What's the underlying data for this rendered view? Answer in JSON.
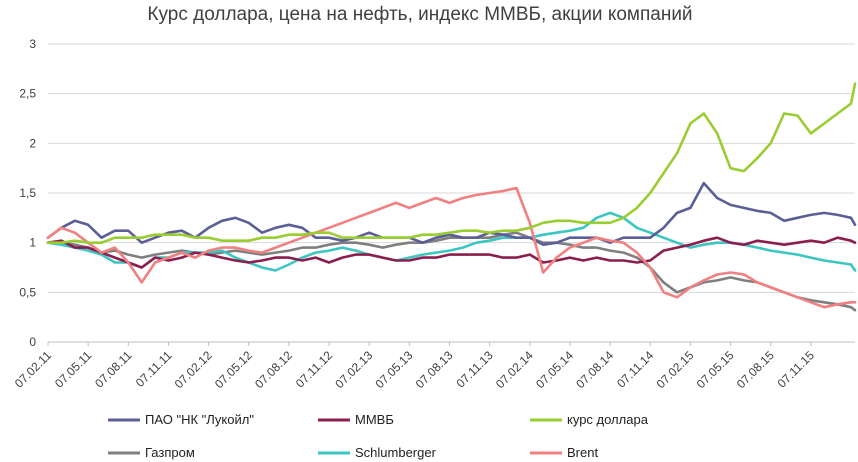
{
  "chart_data": {
    "type": "line",
    "title": "Курс доллара, цена на нефть, индекс ММВБ, акции компаний",
    "xlabel": "",
    "ylabel": "",
    "ylim": [
      0,
      3
    ],
    "y_ticks": [
      "0",
      "0,5",
      "1",
      "1,5",
      "2",
      "2,5",
      "3"
    ],
    "y_tick_values": [
      0,
      0.5,
      1,
      1.5,
      2,
      2.5,
      3
    ],
    "x_ticks": [
      "07.02.11",
      "07.05.11",
      "07.08.11",
      "07.11.11",
      "07.02.12",
      "07.05.12",
      "07.08.12",
      "07.11.12",
      "07.02.13",
      "07.05.13",
      "07.08.13",
      "07.11.13",
      "07.02.14",
      "07.05.14",
      "07.08.14",
      "07.11.14",
      "07.02.15",
      "07.05.15",
      "07.08.15",
      "07.11.15"
    ],
    "x_tick_values": [
      0,
      3,
      6,
      9,
      12,
      15,
      18,
      21,
      24,
      27,
      30,
      33,
      36,
      39,
      42,
      45,
      48,
      51,
      54,
      57
    ],
    "xlim": [
      0,
      60.3
    ],
    "grid": true,
    "legend_position": "bottom",
    "x": [
      0,
      1,
      2,
      3,
      4,
      5,
      6,
      7,
      8,
      9,
      10,
      11,
      12,
      13,
      14,
      15,
      16,
      17,
      18,
      19,
      20,
      21,
      22,
      23,
      24,
      25,
      26,
      27,
      28,
      29,
      30,
      31,
      32,
      33,
      34,
      35,
      36,
      37,
      38,
      39,
      40,
      41,
      42,
      43,
      44,
      45,
      46,
      47,
      48,
      49,
      50,
      51,
      52,
      53,
      54,
      55,
      56,
      57,
      58,
      59,
      60,
      60.3
    ],
    "series": [
      {
        "name": "ПАО \"НК \"Лукойл\"",
        "color": "#5b5f97",
        "values": [
          1.05,
          1.15,
          1.22,
          1.18,
          1.05,
          1.12,
          1.12,
          1.0,
          1.05,
          1.1,
          1.12,
          1.05,
          1.15,
          1.22,
          1.25,
          1.2,
          1.1,
          1.15,
          1.18,
          1.15,
          1.05,
          1.05,
          1.02,
          1.05,
          1.1,
          1.05,
          1.05,
          1.05,
          1.0,
          1.05,
          1.08,
          1.05,
          1.05,
          1.1,
          1.08,
          1.05,
          1.05,
          0.98,
          1.0,
          1.05,
          1.05,
          1.05,
          1.0,
          1.05,
          1.05,
          1.05,
          1.15,
          1.3,
          1.35,
          1.6,
          1.45,
          1.38,
          1.35,
          1.32,
          1.3,
          1.22,
          1.25,
          1.28,
          1.3,
          1.28,
          1.25,
          1.18
        ]
      },
      {
        "name": "ММВБ",
        "color": "#8b1e4f",
        "values": [
          1.0,
          1.02,
          0.95,
          0.95,
          0.9,
          0.85,
          0.8,
          0.75,
          0.85,
          0.82,
          0.85,
          0.9,
          0.88,
          0.85,
          0.82,
          0.8,
          0.82,
          0.85,
          0.85,
          0.82,
          0.85,
          0.8,
          0.85,
          0.88,
          0.88,
          0.85,
          0.82,
          0.82,
          0.85,
          0.85,
          0.88,
          0.88,
          0.88,
          0.88,
          0.85,
          0.85,
          0.88,
          0.8,
          0.82,
          0.85,
          0.82,
          0.85,
          0.82,
          0.82,
          0.8,
          0.82,
          0.92,
          0.95,
          0.98,
          1.02,
          1.05,
          1.0,
          0.98,
          1.02,
          1.0,
          0.98,
          1.0,
          1.02,
          1.0,
          1.05,
          1.02,
          1.0
        ]
      },
      {
        "name": "курс доллара",
        "color": "#9acd32",
        "values": [
          1.0,
          1.0,
          1.02,
          1.0,
          1.0,
          1.05,
          1.05,
          1.05,
          1.08,
          1.08,
          1.08,
          1.05,
          1.05,
          1.02,
          1.02,
          1.02,
          1.05,
          1.05,
          1.08,
          1.08,
          1.1,
          1.1,
          1.05,
          1.05,
          1.05,
          1.05,
          1.05,
          1.05,
          1.08,
          1.08,
          1.1,
          1.12,
          1.12,
          1.1,
          1.12,
          1.12,
          1.15,
          1.2,
          1.22,
          1.22,
          1.2,
          1.2,
          1.2,
          1.25,
          1.35,
          1.5,
          1.7,
          1.9,
          2.2,
          2.3,
          2.1,
          1.75,
          1.72,
          1.85,
          2.0,
          2.3,
          2.28,
          2.1,
          2.2,
          2.3,
          2.4,
          2.6
        ]
      },
      {
        "name": "Schlumberger",
        "color": "#3cc6c2",
        "values": [
          1.0,
          0.98,
          0.95,
          0.92,
          0.88,
          0.8,
          0.8,
          0.75,
          0.85,
          0.85,
          0.9,
          0.9,
          0.9,
          0.92,
          0.85,
          0.8,
          0.75,
          0.72,
          0.78,
          0.85,
          0.9,
          0.92,
          0.95,
          0.92,
          0.88,
          0.85,
          0.82,
          0.85,
          0.88,
          0.9,
          0.92,
          0.95,
          1.0,
          1.02,
          1.05,
          1.05,
          1.05,
          1.08,
          1.1,
          1.12,
          1.15,
          1.25,
          1.3,
          1.25,
          1.15,
          1.1,
          1.05,
          1.0,
          0.95,
          0.98,
          1.0,
          1.0,
          0.98,
          0.95,
          0.92,
          0.9,
          0.88,
          0.85,
          0.82,
          0.8,
          0.78,
          0.72
        ]
      },
      {
        "name": "Brent",
        "color": "#f28080",
        "values": [
          1.05,
          1.15,
          1.1,
          1.0,
          0.9,
          0.95,
          0.8,
          0.6,
          0.8,
          0.85,
          0.9,
          0.85,
          0.92,
          0.95,
          0.95,
          0.92,
          0.9,
          0.95,
          1.0,
          1.05,
          1.1,
          1.15,
          1.2,
          1.25,
          1.3,
          1.35,
          1.4,
          1.35,
          1.4,
          1.45,
          1.4,
          1.45,
          1.48,
          1.5,
          1.52,
          1.55,
          1.2,
          0.7,
          0.85,
          0.95,
          1.0,
          1.05,
          1.02,
          1.0,
          0.9,
          0.75,
          0.5,
          0.45,
          0.55,
          0.62,
          0.68,
          0.7,
          0.68,
          0.6,
          0.55,
          0.5,
          0.45,
          0.4,
          0.35,
          0.38,
          0.4,
          0.4
        ]
      },
      {
        "name": "Газпром",
        "color": "#7f7f7f",
        "values": [
          1.0,
          1.0,
          0.98,
          0.95,
          0.9,
          0.92,
          0.88,
          0.85,
          0.88,
          0.9,
          0.92,
          0.9,
          0.88,
          0.9,
          0.92,
          0.9,
          0.88,
          0.9,
          0.92,
          0.95,
          0.95,
          0.98,
          1.0,
          1.0,
          0.98,
          0.95,
          0.98,
          1.0,
          1.0,
          1.02,
          1.05,
          1.05,
          1.05,
          1.05,
          1.08,
          1.1,
          1.05,
          1.0,
          1.0,
          0.98,
          0.95,
          0.95,
          0.92,
          0.9,
          0.85,
          0.75,
          0.6,
          0.5,
          0.55,
          0.6,
          0.62,
          0.65,
          0.62,
          0.6,
          0.55,
          0.5,
          0.45,
          0.42,
          0.4,
          0.38,
          0.35,
          0.32
        ]
      }
    ]
  }
}
